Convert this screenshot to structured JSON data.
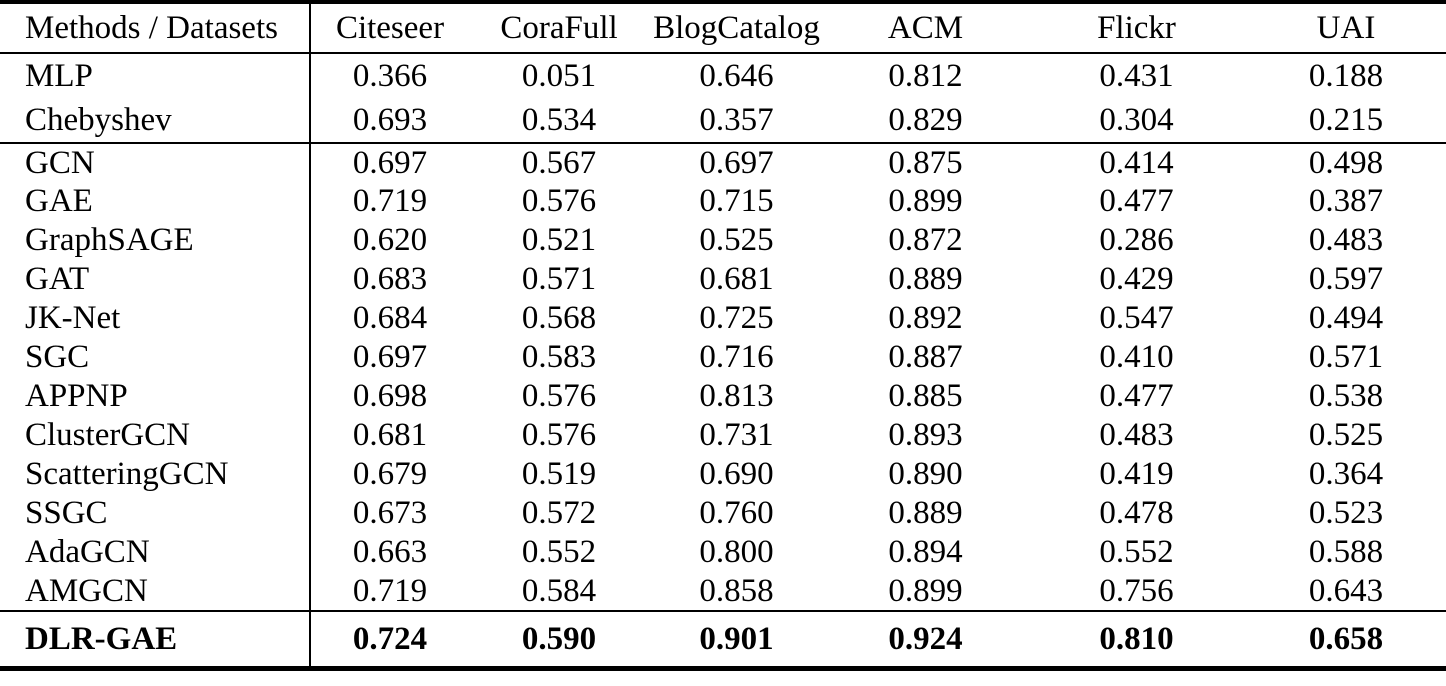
{
  "colors": {
    "background": "#ffffff",
    "text": "#000000",
    "rules": "#000000"
  },
  "table": {
    "columns": [
      "Methods / Datasets",
      "Citeseer",
      "CoraFull",
      "BlogCatalog",
      "ACM",
      "Flickr",
      "UAI"
    ],
    "groups": [
      {
        "name": "baseline-methods",
        "rows": [
          {
            "method": "MLP",
            "values": [
              "0.366",
              "0.051",
              "0.646",
              "0.812",
              "0.431",
              "0.188"
            ]
          },
          {
            "method": "Chebyshev",
            "values": [
              "0.693",
              "0.534",
              "0.357",
              "0.829",
              "0.304",
              "0.215"
            ]
          }
        ]
      },
      {
        "name": "graph-neural-network-methods",
        "rows": [
          {
            "method": "GCN",
            "values": [
              "0.697",
              "0.567",
              "0.697",
              "0.875",
              "0.414",
              "0.498"
            ]
          },
          {
            "method": "GAE",
            "values": [
              "0.719",
              "0.576",
              "0.715",
              "0.899",
              "0.477",
              "0.387"
            ]
          },
          {
            "method": "GraphSAGE",
            "values": [
              "0.620",
              "0.521",
              "0.525",
              "0.872",
              "0.286",
              "0.483"
            ]
          },
          {
            "method": "GAT",
            "values": [
              "0.683",
              "0.571",
              "0.681",
              "0.889",
              "0.429",
              "0.597"
            ]
          },
          {
            "method": "JK-Net",
            "values": [
              "0.684",
              "0.568",
              "0.725",
              "0.892",
              "0.547",
              "0.494"
            ]
          },
          {
            "method": "SGC",
            "values": [
              "0.697",
              "0.583",
              "0.716",
              "0.887",
              "0.410",
              "0.571"
            ]
          },
          {
            "method": "APPNP",
            "values": [
              "0.698",
              "0.576",
              "0.813",
              "0.885",
              "0.477",
              "0.538"
            ]
          },
          {
            "method": "ClusterGCN",
            "values": [
              "0.681",
              "0.576",
              "0.731",
              "0.893",
              "0.483",
              "0.525"
            ]
          },
          {
            "method": "ScatteringGCN",
            "values": [
              "0.679",
              "0.519",
              "0.690",
              "0.890",
              "0.419",
              "0.364"
            ]
          },
          {
            "method": "SSGC",
            "values": [
              "0.673",
              "0.572",
              "0.760",
              "0.889",
              "0.478",
              "0.523"
            ]
          },
          {
            "method": "AdaGCN",
            "values": [
              "0.663",
              "0.552",
              "0.800",
              "0.894",
              "0.552",
              "0.588"
            ]
          },
          {
            "method": "AMGCN",
            "values": [
              "0.719",
              "0.584",
              "0.858",
              "0.899",
              "0.756",
              "0.643"
            ]
          }
        ]
      },
      {
        "name": "proposed-method",
        "rows": [
          {
            "method": "DLR-GAE",
            "bold": true,
            "values": [
              "0.724",
              "0.590",
              "0.901",
              "0.924",
              "0.810",
              "0.658"
            ]
          }
        ]
      }
    ]
  }
}
